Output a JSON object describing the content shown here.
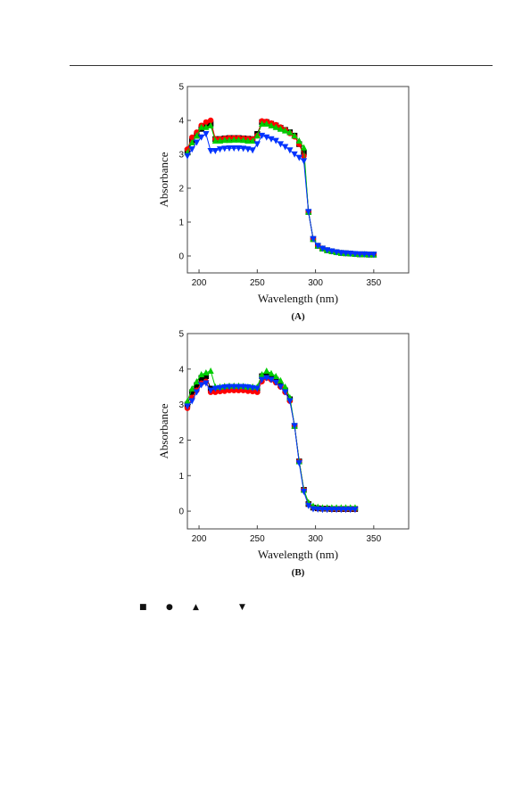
{
  "chart_data": [
    {
      "type": "line",
      "panel_label": "(A)",
      "xlabel": "Wavelength (nm)",
      "ylabel": "Absorbance",
      "xlim": [
        190,
        380
      ],
      "ylim": [
        -0.5,
        5
      ],
      "xticks": [
        "200",
        "250",
        "300",
        "350"
      ],
      "yticks": [
        "0",
        "1",
        "2",
        "3",
        "4",
        "5"
      ],
      "x": [
        190,
        194,
        198,
        202,
        206,
        210,
        214,
        218,
        222,
        226,
        230,
        234,
        238,
        242,
        246,
        250,
        254,
        258,
        262,
        266,
        270,
        274,
        278,
        282,
        286,
        290,
        294,
        298,
        302,
        306,
        310,
        314,
        318,
        322,
        326,
        330,
        334,
        338,
        342,
        346,
        350
      ],
      "series": [
        {
          "marker": "square",
          "color": "#000000",
          "values": [
            3.1,
            3.4,
            3.55,
            3.75,
            3.85,
            3.9,
            3.45,
            3.45,
            3.47,
            3.48,
            3.48,
            3.48,
            3.47,
            3.46,
            3.45,
            3.6,
            3.95,
            3.95,
            3.9,
            3.85,
            3.78,
            3.72,
            3.65,
            3.55,
            3.3,
            3.05,
            1.3,
            0.5,
            0.3,
            0.22,
            0.17,
            0.14,
            0.11,
            0.09,
            0.08,
            0.07,
            0.06,
            0.05,
            0.05,
            0.04,
            0.04
          ]
        },
        {
          "marker": "circle",
          "color": "#ff0000",
          "values": [
            3.15,
            3.5,
            3.65,
            3.85,
            3.95,
            4.0,
            3.45,
            3.45,
            3.47,
            3.48,
            3.48,
            3.48,
            3.47,
            3.46,
            3.45,
            3.55,
            3.98,
            3.97,
            3.92,
            3.87,
            3.8,
            3.72,
            3.62,
            3.52,
            3.3,
            2.95,
            1.3,
            0.5,
            0.3,
            0.22,
            0.17,
            0.14,
            0.11,
            0.09,
            0.08,
            0.07,
            0.06,
            0.05,
            0.05,
            0.04,
            0.04
          ]
        },
        {
          "marker": "triangle-up",
          "color": "#00cc00",
          "values": [
            3.05,
            3.35,
            3.55,
            3.8,
            3.8,
            3.85,
            3.4,
            3.4,
            3.42,
            3.42,
            3.43,
            3.43,
            3.42,
            3.4,
            3.4,
            3.55,
            3.9,
            3.9,
            3.85,
            3.8,
            3.75,
            3.7,
            3.65,
            3.55,
            3.4,
            3.2,
            1.3,
            0.5,
            0.3,
            0.22,
            0.17,
            0.14,
            0.11,
            0.09,
            0.08,
            0.07,
            0.06,
            0.05,
            0.05,
            0.04,
            0.04
          ]
        },
        {
          "marker": "triangle-down",
          "color": "#0033ff",
          "values": [
            2.95,
            3.15,
            3.35,
            3.5,
            3.6,
            3.1,
            3.1,
            3.15,
            3.17,
            3.18,
            3.18,
            3.18,
            3.17,
            3.15,
            3.12,
            3.3,
            3.55,
            3.5,
            3.45,
            3.4,
            3.3,
            3.22,
            3.12,
            3.0,
            2.9,
            2.8,
            1.3,
            0.5,
            0.3,
            0.22,
            0.17,
            0.14,
            0.11,
            0.09,
            0.08,
            0.07,
            0.06,
            0.05,
            0.05,
            0.04,
            0.04
          ]
        }
      ]
    },
    {
      "type": "line",
      "panel_label": "(B)",
      "xlabel": "Wavelength (nm)",
      "ylabel": "Absorbance",
      "xlim": [
        190,
        380
      ],
      "ylim": [
        -0.5,
        5
      ],
      "xticks": [
        "200",
        "250",
        "300",
        "350"
      ],
      "yticks": [
        "0",
        "1",
        "2",
        "3",
        "4",
        "5"
      ],
      "x": [
        190,
        194,
        198,
        202,
        206,
        210,
        214,
        218,
        222,
        226,
        230,
        234,
        238,
        242,
        246,
        250,
        254,
        258,
        262,
        266,
        270,
        274,
        278,
        282,
        286,
        290,
        294,
        298,
        302,
        306,
        310,
        314,
        318,
        322,
        326,
        330,
        334
      ],
      "series": [
        {
          "marker": "square",
          "color": "#000000",
          "values": [
            3.0,
            3.35,
            3.55,
            3.75,
            3.8,
            3.45,
            3.4,
            3.42,
            3.44,
            3.45,
            3.45,
            3.45,
            3.45,
            3.44,
            3.42,
            3.4,
            3.8,
            3.8,
            3.75,
            3.7,
            3.55,
            3.4,
            3.15,
            2.4,
            1.4,
            0.6,
            0.2,
            0.1,
            0.08,
            0.07,
            0.07,
            0.06,
            0.06,
            0.06,
            0.06,
            0.06,
            0.06
          ]
        },
        {
          "marker": "circle",
          "color": "#ff0000",
          "values": [
            2.9,
            3.2,
            3.4,
            3.6,
            3.65,
            3.35,
            3.35,
            3.37,
            3.38,
            3.4,
            3.4,
            3.4,
            3.4,
            3.38,
            3.37,
            3.35,
            3.65,
            3.75,
            3.7,
            3.62,
            3.5,
            3.35,
            3.1,
            2.4,
            1.4,
            0.6,
            0.2,
            0.1,
            0.08,
            0.07,
            0.07,
            0.06,
            0.06,
            0.06,
            0.06,
            0.06,
            0.06
          ]
        },
        {
          "marker": "triangle-up",
          "color": "#00cc00",
          "values": [
            3.1,
            3.45,
            3.65,
            3.85,
            3.9,
            3.95,
            3.5,
            3.5,
            3.52,
            3.53,
            3.53,
            3.53,
            3.52,
            3.5,
            3.5,
            3.5,
            3.85,
            3.95,
            3.88,
            3.8,
            3.68,
            3.5,
            3.2,
            2.4,
            1.4,
            0.6,
            0.25,
            0.15,
            0.12,
            0.1,
            0.1,
            0.1,
            0.1,
            0.1,
            0.1,
            0.1,
            0.1
          ]
        },
        {
          "marker": "triangle-down",
          "color": "#0033ff",
          "values": [
            2.95,
            3.1,
            3.35,
            3.55,
            3.6,
            3.4,
            3.45,
            3.47,
            3.49,
            3.5,
            3.5,
            3.5,
            3.5,
            3.49,
            3.47,
            3.45,
            3.7,
            3.75,
            3.7,
            3.62,
            3.5,
            3.35,
            3.1,
            2.4,
            1.35,
            0.55,
            0.15,
            0.06,
            0.05,
            0.04,
            0.04,
            0.04,
            0.04,
            0.04,
            0.04,
            0.04,
            0.04
          ]
        }
      ]
    }
  ],
  "legend_symbols": [
    {
      "marker": "square",
      "glyph": "■"
    },
    {
      "marker": "circle",
      "glyph": "●"
    },
    {
      "marker": "triangle-up",
      "glyph": "▲"
    },
    {
      "marker": "triangle-down",
      "glyph": "▼"
    }
  ]
}
